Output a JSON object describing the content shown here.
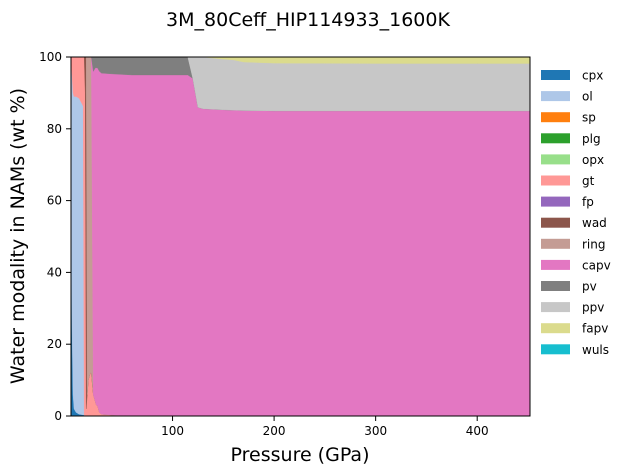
{
  "chart_data": {
    "type": "area",
    "stacked": true,
    "title": "3M_80Ceff_HIP114933_1600K",
    "xlabel": "Pressure (GPa)",
    "ylabel": "Water modality in NAMs (wt %)",
    "xlim": [
      0,
      452
    ],
    "ylim": [
      0,
      100
    ],
    "xticks": [
      100,
      200,
      300,
      400
    ],
    "yticks": [
      0,
      20,
      40,
      60,
      80,
      100
    ],
    "grid": false,
    "legend_placement": "right",
    "x": [
      0,
      1,
      2,
      3,
      5,
      8,
      10,
      12,
      13,
      14,
      15,
      16,
      17,
      19,
      20,
      22,
      24,
      25,
      26,
      28,
      30,
      40,
      60,
      80,
      100,
      110,
      115,
      120,
      125,
      130,
      150,
      160,
      170,
      200,
      300,
      400,
      452
    ],
    "series": [
      {
        "name": "cpx",
        "color": "#1f77b4",
        "values": [
          80,
          25,
          6,
          2,
          1,
          0.5,
          0.4,
          0.3,
          0.3,
          0,
          0,
          0,
          0,
          0,
          0,
          0,
          0,
          0,
          0,
          0,
          0,
          0,
          0,
          0,
          0,
          0,
          0,
          0,
          0,
          0,
          0,
          0,
          0,
          0,
          0,
          0,
          0
        ]
      },
      {
        "name": "ol",
        "color": "#aec7e8",
        "values": [
          20,
          70,
          84,
          87,
          88,
          88,
          87,
          86,
          0,
          0,
          0,
          0,
          0,
          0,
          0,
          0,
          0,
          0,
          0,
          0,
          0,
          0,
          0,
          0,
          0,
          0,
          0,
          0,
          0,
          0,
          0,
          0,
          0,
          0,
          0,
          0,
          0
        ]
      },
      {
        "name": "sp",
        "color": "#ff7f0e",
        "values": [
          0,
          0,
          0,
          0,
          0,
          0,
          0,
          0,
          0,
          0,
          0,
          0,
          0,
          0,
          0,
          0,
          0,
          0,
          0,
          0,
          0,
          0,
          0,
          0,
          0,
          0,
          0,
          0,
          0,
          0,
          0,
          0,
          0,
          0,
          0,
          0,
          0
        ]
      },
      {
        "name": "plg",
        "color": "#2ca02c",
        "values": [
          0,
          0,
          0,
          0,
          0,
          0,
          0,
          0,
          0,
          0,
          0,
          0,
          0,
          0,
          0,
          0,
          0,
          0,
          0,
          0,
          0,
          0,
          0,
          0,
          0,
          0,
          0,
          0,
          0,
          0,
          0,
          0,
          0,
          0,
          0,
          0,
          0
        ]
      },
      {
        "name": "opx",
        "color": "#98df8a",
        "values": [
          0,
          0,
          0,
          0,
          0,
          0,
          0,
          0,
          0,
          0,
          0,
          0,
          0,
          0,
          0,
          0,
          0,
          0,
          0,
          0,
          0,
          0,
          0,
          0,
          0,
          0,
          0,
          0,
          0,
          0,
          0,
          0,
          0,
          0,
          0,
          0,
          0
        ]
      },
      {
        "name": "gt",
        "color": "#ff9896",
        "values": [
          0,
          5,
          10,
          11,
          11,
          11.5,
          12.6,
          13.7,
          99.7,
          90,
          2,
          6,
          10,
          12,
          12,
          6,
          4,
          3,
          3,
          1,
          0.5,
          0.3,
          0,
          0,
          0,
          0,
          0,
          0,
          0,
          0,
          0,
          0,
          0,
          0,
          0,
          0,
          0
        ]
      },
      {
        "name": "fp",
        "color": "#9467bd",
        "values": [
          0,
          0,
          0,
          0,
          0,
          0,
          0,
          0,
          0,
          0,
          0,
          0,
          0,
          0,
          0,
          0,
          0,
          0,
          0,
          0,
          0,
          0,
          0,
          0,
          0,
          0,
          0,
          0,
          0,
          0,
          0,
          0,
          0,
          0,
          0,
          0,
          0
        ]
      },
      {
        "name": "wad",
        "color": "#8c564b",
        "values": [
          0,
          0,
          0,
          0,
          0,
          0,
          0,
          0,
          0,
          10,
          98,
          0,
          0,
          0,
          0,
          0,
          0,
          0,
          0,
          0,
          0,
          0,
          0,
          0,
          0,
          0,
          0,
          0,
          0,
          0,
          0,
          0,
          0,
          0,
          0,
          0,
          0
        ]
      },
      {
        "name": "ring",
        "color": "#c49c94",
        "values": [
          0,
          0,
          0,
          0,
          0,
          0,
          0,
          0,
          0,
          0,
          0,
          94,
          90,
          88,
          88,
          0,
          0,
          0,
          0,
          0,
          0,
          0,
          0,
          0,
          0,
          0,
          0,
          0,
          0,
          0,
          0,
          0,
          0,
          0,
          0,
          0,
          0
        ]
      },
      {
        "name": "capv",
        "color": "#e377c2",
        "values": [
          0,
          0,
          0,
          0,
          0,
          0,
          0,
          0,
          0,
          0,
          0,
          0,
          0,
          0,
          0,
          90,
          93,
          94,
          94,
          95,
          95,
          95,
          95,
          95,
          95,
          95,
          95,
          94,
          86,
          85.6,
          85.3,
          85.2,
          85.1,
          85,
          85,
          85,
          85
        ]
      },
      {
        "name": "pv",
        "color": "#7f7f7f",
        "values": [
          0,
          0,
          0,
          0,
          0,
          0,
          0,
          0,
          0,
          0,
          0,
          0,
          0,
          0,
          0,
          4,
          3,
          3,
          3,
          4,
          4.5,
          4.7,
          5,
          5,
          5,
          5,
          5,
          0,
          0,
          0,
          0,
          0,
          0,
          0,
          0,
          0,
          0
        ]
      },
      {
        "name": "ppv",
        "color": "#c7c7c7",
        "values": [
          0,
          0,
          0,
          0,
          0,
          0,
          0,
          0,
          0,
          0,
          0,
          0,
          0,
          0,
          0,
          0,
          0,
          0,
          0,
          0,
          0,
          0,
          0,
          0,
          0,
          0,
          0,
          6,
          14,
          14.4,
          14.1,
          14,
          13.5,
          13.3,
          13.2,
          13.2,
          13.2
        ]
      },
      {
        "name": "fapv",
        "color": "#dbdb8d",
        "values": [
          0,
          0,
          0,
          0,
          0,
          0,
          0,
          0,
          0,
          0,
          0,
          0,
          0,
          0,
          0,
          0,
          0,
          0,
          0,
          0,
          0,
          0,
          0,
          0,
          0,
          0,
          0,
          0,
          0,
          0,
          0.6,
          0.8,
          1.4,
          1.7,
          1.8,
          1.8,
          1.8
        ]
      },
      {
        "name": "wuls",
        "color": "#17becf",
        "values": [
          0,
          0,
          0,
          0,
          0,
          0,
          0,
          0,
          0,
          0,
          0,
          0,
          0,
          0,
          0,
          0,
          0,
          0,
          0,
          0,
          0,
          0,
          0,
          0,
          0,
          0,
          0,
          0,
          0,
          0,
          0,
          0,
          0,
          0,
          0,
          0,
          0
        ]
      }
    ]
  }
}
